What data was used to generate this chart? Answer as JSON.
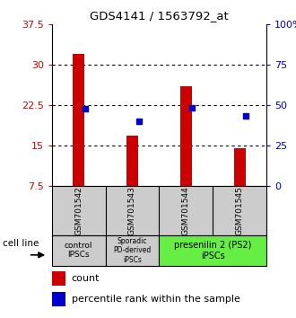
{
  "title": "GDS4141 / 1563792_at",
  "samples": [
    "GSM701542",
    "GSM701543",
    "GSM701544",
    "GSM701545"
  ],
  "red_values": [
    32.0,
    16.8,
    26.0,
    14.5
  ],
  "blue_values": [
    21.8,
    19.5,
    22.0,
    20.5
  ],
  "ylim_left": [
    7.5,
    37.5
  ],
  "ylim_right": [
    0,
    100
  ],
  "yticks_left": [
    7.5,
    15.0,
    22.5,
    30.0,
    37.5
  ],
  "yticks_right": [
    0,
    25,
    50,
    75,
    100
  ],
  "ytick_labels_left": [
    "7.5",
    "15",
    "22.5",
    "30",
    "37.5"
  ],
  "ytick_labels_right": [
    "0",
    "25",
    "50",
    "75",
    "100%"
  ],
  "bar_color": "#cc0000",
  "dot_color": "#0000cc",
  "bar_bottom": 7.5,
  "background_color": "#ffffff",
  "sample_box_color": "#cccccc",
  "group1_color": "#cccccc",
  "group2_color": "#cccccc",
  "group3_color": "#66ee44",
  "group1_label": "control\nIPSCs",
  "group2_label": "Sporadic\nPD-derived\niPSCs",
  "group3_label": "presenilin 2 (PS2)\niPSCs"
}
